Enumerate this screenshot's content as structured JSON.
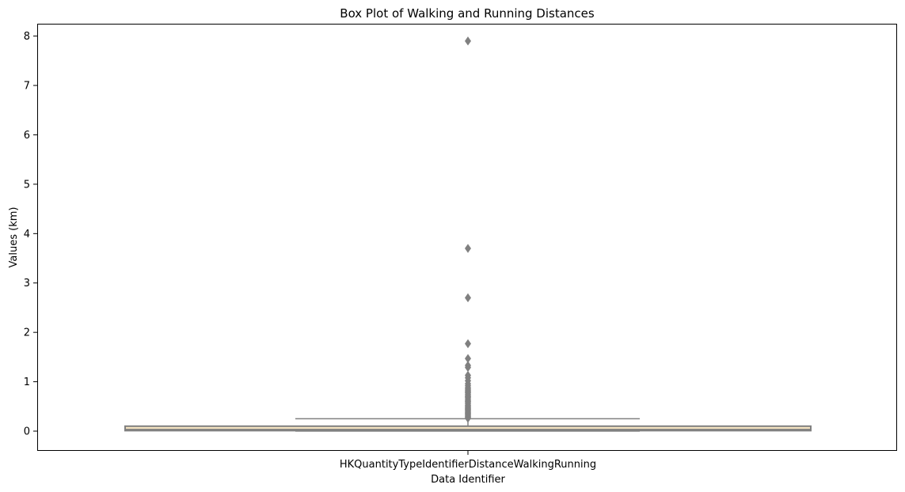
{
  "chart_data": {
    "type": "box",
    "title": "Box Plot of Walking and Running Distances",
    "xlabel": "Data Identifier",
    "ylabel": "Values (km)",
    "categories": [
      "HKQuantityTypeIdentifierDistanceWalkingRunning"
    ],
    "ylim": [
      -0.4,
      8.25
    ],
    "yticks": [
      0,
      1,
      2,
      3,
      4,
      5,
      6,
      7,
      8
    ],
    "grid": false,
    "legend": "none",
    "box": {
      "q1": 0.01,
      "median": 0.03,
      "q3": 0.1,
      "whisker_low": 0.0,
      "whisker_high": 0.25,
      "box_fill": "#f4e3c1",
      "line_color": "#808080"
    },
    "outliers": [
      7.9,
      3.7,
      2.7,
      1.77,
      1.47,
      1.33,
      1.29,
      1.13,
      1.08,
      1.02,
      0.96,
      0.92,
      0.88,
      0.85,
      0.82,
      0.8,
      0.78,
      0.75,
      0.72,
      0.7,
      0.68,
      0.65,
      0.62,
      0.6,
      0.58,
      0.55,
      0.52,
      0.5,
      0.48,
      0.46,
      0.44,
      0.42,
      0.4,
      0.38,
      0.36,
      0.34,
      0.32,
      0.3,
      0.28,
      0.26
    ]
  }
}
